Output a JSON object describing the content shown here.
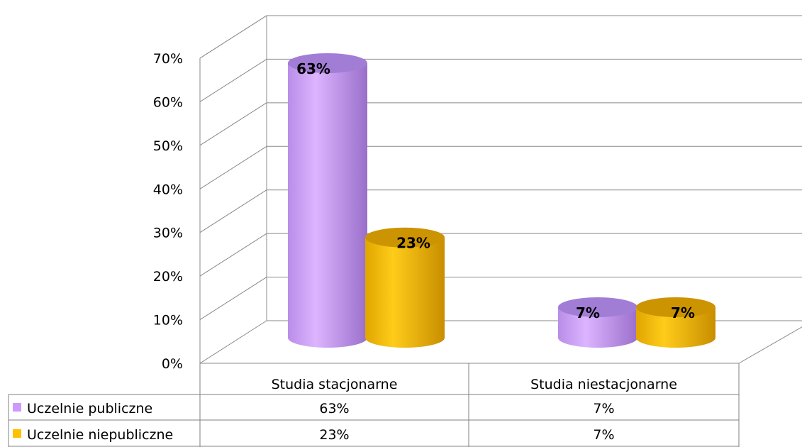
{
  "chart_data": {
    "type": "bar",
    "style": "3d-cylinder",
    "categories": [
      "Studia stacjonarne",
      "Studia niestacjonarne"
    ],
    "series": [
      {
        "name": "Uczelnie publiczne",
        "values": [
          63,
          7
        ],
        "labels": [
          "63%",
          "7%"
        ],
        "color": "#cc99ff"
      },
      {
        "name": "Uczelnie niepubliczne",
        "values": [
          23,
          7
        ],
        "labels": [
          "23%",
          "7%"
        ],
        "color": "#ffc000"
      }
    ],
    "ylim": [
      0,
      70
    ],
    "yticks": [
      0,
      10,
      20,
      30,
      40,
      50,
      60,
      70
    ],
    "ytick_labels": [
      "0%",
      "10%",
      "20%",
      "30%",
      "40%",
      "50%",
      "60%",
      "70%"
    ],
    "grid": true,
    "data_table": true,
    "title": "",
    "xlabel": "",
    "ylabel": ""
  }
}
